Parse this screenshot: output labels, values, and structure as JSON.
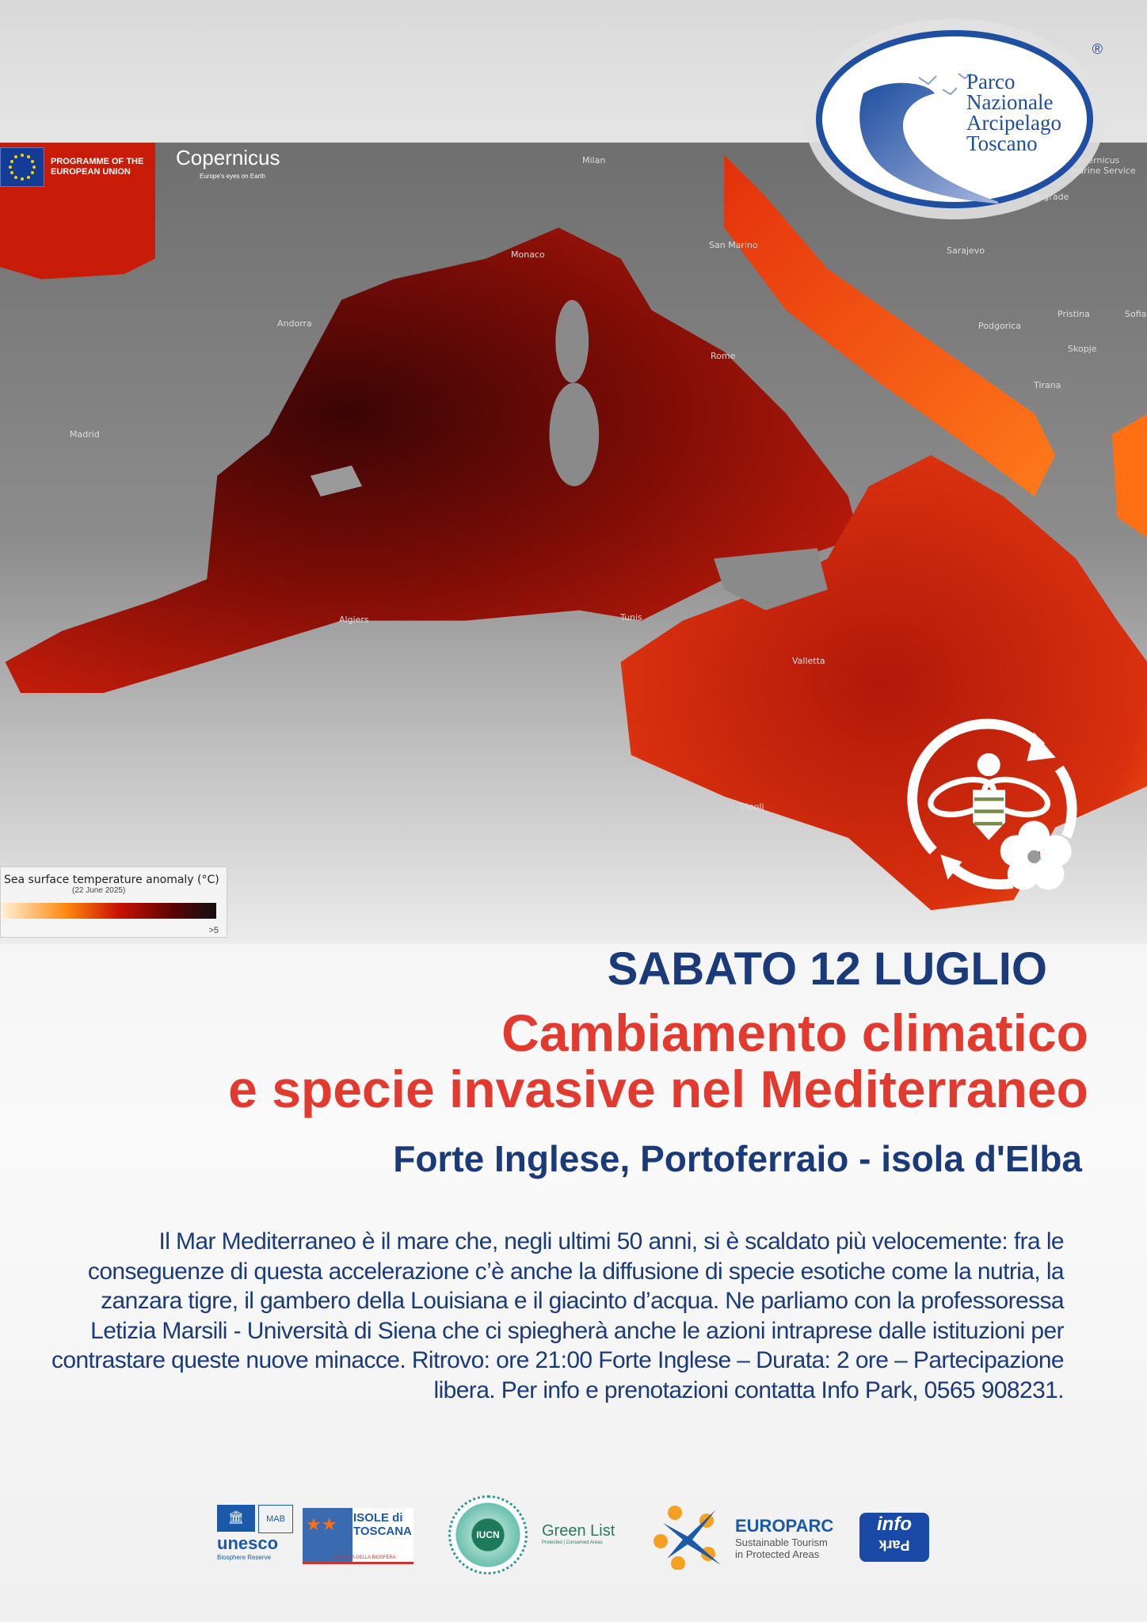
{
  "header": {
    "eu_programme": "PROGRAMME OF THE EUROPEAN UNION",
    "copernicus": "Copernicus",
    "copernicus_tagline": "Europe's eyes on Earth",
    "park_logo": {
      "lines": [
        "Parco",
        "Nazionale",
        "Arcipelago",
        "Toscano"
      ],
      "registered": "®"
    }
  },
  "map": {
    "labels": [
      "Milan",
      "Monaco",
      "San Marino",
      "Sarajevo",
      "Belgrade",
      "Andorra",
      "Rome",
      "Podgorica",
      "Pristina",
      "Sofia",
      "Skopje",
      "Tirana",
      "Madrid",
      "Algiers",
      "Tunis",
      "Valletta",
      "Tripoli",
      "Copernicus Marine Service"
    ],
    "legend": {
      "title": "Sea surface temperature anomaly (°C)",
      "date": "(22 June 2025)",
      "max": ">5"
    },
    "colors": {
      "sea_dark": "#5a0707",
      "sea_mid": "#c3200c",
      "sea_hot": "#ff6a10",
      "land": "#8a8a8a"
    }
  },
  "event": {
    "date": "SABATO 12 LUGLIO",
    "title_line1": "Cambiamento climatico",
    "title_line2": "e specie invasive nel Mediterraneo",
    "place": "Forte Inglese, Portoferraio - isola d'Elba",
    "description": "Il Mar Mediterraneo è il mare che, negli ultimi 50 anni, si è scaldato più velocemente: fra le conseguenze di questa accelerazione c’è anche la diffusione di specie esotiche come la nutria, la zanzara tigre, il gambero della Louisiana e il giacinto d’acqua. Ne parliamo con la professoressa Letizia Marsili - Università di Siena che ci spiegherà anche le azioni intraprese dalle istituzioni per contrastare queste nuove minacce. Ritrovo: ore 21:00 Forte Inglese – Durata: 2 ore – Partecipazione libera. Per info e prenotazioni contatta Info Park, 0565 908231.",
    "colors": {
      "navy": "#1a3a7a",
      "red": "#e23a2f"
    }
  },
  "footer_logos": {
    "unesco": {
      "name": "unesco",
      "mab": "MAB",
      "sub": "Biosphere Reserve"
    },
    "isole": {
      "name": "ISOLE di TOSCANA",
      "sub": "RISERVA DELLA BIOSFERA"
    },
    "iucn": {
      "name": "IUCN",
      "green_list": "Green List",
      "sub": "Protected | Conserved Areas"
    },
    "europarc": {
      "name": "EUROPARC",
      "sub1": "Sustainable Tourism",
      "sub2": "in Protected Areas"
    },
    "infopark": {
      "top": "info",
      "bottom": "Park"
    }
  }
}
